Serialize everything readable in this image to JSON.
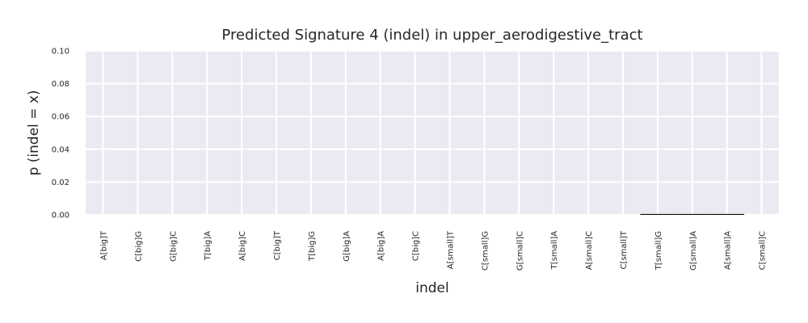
{
  "chart_data": {
    "type": "bar",
    "title": "Predicted Signature 4 (indel) in upper_aerodigestive_tract",
    "xlabel": "indel",
    "ylabel": "p (indel = x)",
    "categories": [
      "A[big]T",
      "C[big]G",
      "G[big]C",
      "T[big]A",
      "A[big]C",
      "C[big]T",
      "T[big]G",
      "G[big]A",
      "A[big]A",
      "C[big]C",
      "A[small]T",
      "C[small]G",
      "G[small]C",
      "T[small]A",
      "A[small]C",
      "C[small]T",
      "T[small]G",
      "G[small]A",
      "A[small]A",
      "C[small]C"
    ],
    "values": [
      0,
      0,
      0,
      0,
      0,
      0,
      0,
      0,
      0,
      0,
      0,
      0,
      0,
      0,
      0,
      0,
      0.0005,
      0.0005,
      0.0005,
      0
    ],
    "ylim": [
      0,
      0.1
    ],
    "yticks": [
      "0.00",
      "0.02",
      "0.04",
      "0.06",
      "0.08",
      "0.10"
    ],
    "grid": true,
    "colors": {
      "background": "#eaeaf2",
      "grid": "#ffffff",
      "bar": "#000000",
      "text": "#262626"
    }
  }
}
